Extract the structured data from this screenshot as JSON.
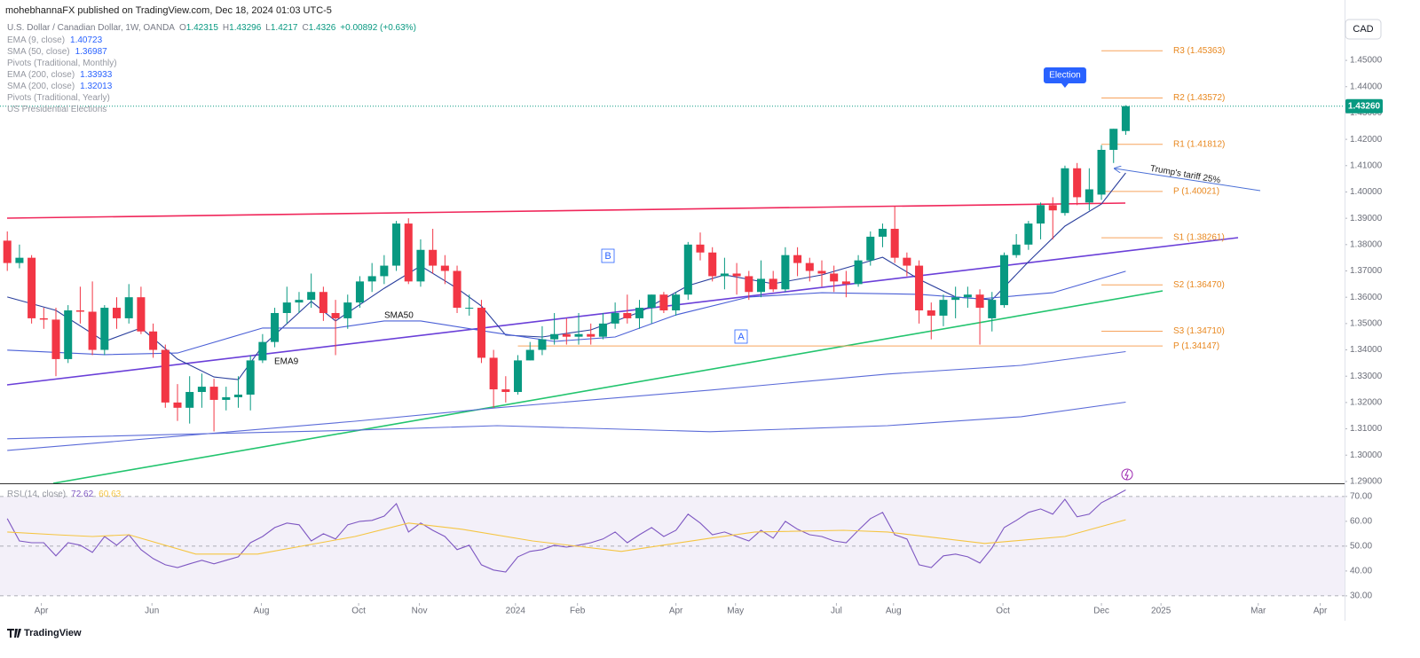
{
  "header": "mohebhannaFX published on TradingView.com, Dec 18, 2024 01:03 UTC-5",
  "currency_button": "CAD",
  "footer": "TradingView",
  "chart_data": [
    {
      "type": "candlestick",
      "title": "U.S. Dollar / Canadian Dollar, 1W, OANDA",
      "ohlc_prefixes": [
        "O",
        "H",
        "L",
        "C"
      ],
      "change_label": "+0.00892 (+0.63%)",
      "up_color": "#089981",
      "down_color": "#f23645",
      "open": [
        1.3815,
        1.373,
        1.375,
        1.352,
        1.3515,
        1.3365,
        1.355,
        1.3545,
        1.34,
        1.356,
        1.352,
        1.36,
        1.347,
        1.34,
        1.32,
        1.318,
        1.324,
        1.326,
        1.321,
        1.322,
        1.323,
        1.336,
        1.343,
        1.354,
        1.358,
        1.359,
        1.362,
        1.354,
        1.352,
        1.358,
        1.366,
        1.368,
        1.372,
        1.388,
        1.366,
        1.378,
        1.372,
        1.37,
        1.356,
        1.356,
        1.337,
        1.325,
        1.324,
        1.336,
        1.34,
        1.344,
        1.346,
        1.345,
        1.346,
        1.345,
        1.35,
        1.354,
        1.352,
        1.356,
        1.361,
        1.355,
        1.361,
        1.38,
        1.377,
        1.368,
        1.369,
        1.368,
        1.362,
        1.367,
        1.363,
        1.376,
        1.373,
        1.37,
        1.369,
        1.366,
        1.365,
        1.374,
        1.383,
        1.386,
        1.375,
        1.372,
        1.355,
        1.353,
        1.359,
        1.36,
        1.361,
        1.352,
        1.357,
        1.376,
        1.38,
        1.388,
        1.395,
        1.392,
        1.409,
        1.396,
        1.399,
        1.416,
        1.42315
      ],
      "high": [
        1.385,
        1.38,
        1.376,
        1.356,
        1.356,
        1.357,
        1.364,
        1.366,
        1.357,
        1.36,
        1.365,
        1.364,
        1.35,
        1.342,
        1.327,
        1.33,
        1.331,
        1.329,
        1.326,
        1.33,
        1.338,
        1.346,
        1.356,
        1.364,
        1.362,
        1.369,
        1.364,
        1.359,
        1.361,
        1.368,
        1.373,
        1.376,
        1.389,
        1.39,
        1.382,
        1.386,
        1.376,
        1.372,
        1.361,
        1.359,
        1.34,
        1.33,
        1.338,
        1.343,
        1.349,
        1.354,
        1.352,
        1.354,
        1.35,
        1.354,
        1.358,
        1.361,
        1.359,
        1.361,
        1.362,
        1.362,
        1.381,
        1.3846,
        1.379,
        1.375,
        1.373,
        1.37,
        1.374,
        1.37,
        1.379,
        1.379,
        1.375,
        1.374,
        1.372,
        1.37,
        1.376,
        1.385,
        1.388,
        1.3946,
        1.377,
        1.374,
        1.358,
        1.361,
        1.364,
        1.364,
        1.363,
        1.362,
        1.377,
        1.384,
        1.389,
        1.396,
        1.398,
        1.41,
        1.411,
        1.409,
        1.4178,
        1.424,
        1.43296
      ],
      "low": [
        1.37,
        1.371,
        1.35,
        1.348,
        1.33,
        1.335,
        1.35,
        1.338,
        1.338,
        1.348,
        1.35,
        1.346,
        1.337,
        1.318,
        1.313,
        1.312,
        1.318,
        1.309,
        1.317,
        1.318,
        1.317,
        1.335,
        1.341,
        1.35,
        1.354,
        1.356,
        1.351,
        1.338,
        1.348,
        1.356,
        1.362,
        1.365,
        1.37,
        1.365,
        1.364,
        1.369,
        1.365,
        1.354,
        1.353,
        1.335,
        1.318,
        1.32,
        1.323,
        1.336,
        1.338,
        1.342,
        1.342,
        1.342,
        1.342,
        1.344,
        1.348,
        1.35,
        1.348,
        1.35,
        1.354,
        1.353,
        1.359,
        1.374,
        1.366,
        1.363,
        1.361,
        1.359,
        1.36,
        1.362,
        1.362,
        1.368,
        1.366,
        1.364,
        1.362,
        1.36,
        1.364,
        1.372,
        1.379,
        1.373,
        1.368,
        1.35,
        1.344,
        1.349,
        1.352,
        1.356,
        1.342,
        1.347,
        1.356,
        1.375,
        1.378,
        1.382,
        1.382,
        1.391,
        1.395,
        1.393,
        1.397,
        1.411,
        1.4217
      ],
      "close": [
        1.373,
        1.375,
        1.352,
        1.3515,
        1.3365,
        1.355,
        1.3545,
        1.34,
        1.356,
        1.352,
        1.36,
        1.347,
        1.34,
        1.32,
        1.318,
        1.324,
        1.326,
        1.321,
        1.322,
        1.323,
        1.336,
        1.343,
        1.354,
        1.358,
        1.359,
        1.362,
        1.354,
        1.352,
        1.358,
        1.366,
        1.368,
        1.372,
        1.388,
        1.366,
        1.378,
        1.372,
        1.37,
        1.356,
        1.356,
        1.337,
        1.325,
        1.324,
        1.336,
        1.34,
        1.344,
        1.346,
        1.345,
        1.346,
        1.345,
        1.35,
        1.354,
        1.352,
        1.356,
        1.361,
        1.355,
        1.361,
        1.38,
        1.377,
        1.368,
        1.369,
        1.368,
        1.362,
        1.367,
        1.363,
        1.376,
        1.373,
        1.37,
        1.369,
        1.366,
        1.365,
        1.374,
        1.383,
        1.386,
        1.375,
        1.372,
        1.355,
        1.353,
        1.359,
        1.36,
        1.361,
        1.356,
        1.359,
        1.376,
        1.38,
        1.388,
        1.395,
        1.393,
        1.409,
        1.398,
        1.401,
        1.416,
        1.424,
        1.4326
      ],
      "close_label": "1.43260",
      "series": [
        {
          "name": "EMA (9, close)",
          "color": "#2a3f9d",
          "x": [
            0,
            4,
            8,
            11,
            14,
            17,
            19,
            21,
            25,
            27,
            31,
            34,
            37,
            39,
            41,
            44,
            48,
            52,
            56,
            59,
            63,
            67,
            72,
            75,
            78,
            81,
            84,
            87,
            90,
            92
          ],
          "values": [
            1.3601,
            1.355,
            1.3432,
            1.3483,
            1.3365,
            1.3297,
            1.3287,
            1.3415,
            1.3584,
            1.351,
            1.3634,
            1.3719,
            1.3634,
            1.3567,
            1.3456,
            1.3449,
            1.3476,
            1.3543,
            1.3644,
            1.3685,
            1.3651,
            1.3685,
            1.3752,
            1.3668,
            1.3601,
            1.359,
            1.3735,
            1.387,
            1.3954,
            1.40723
          ]
        },
        {
          "name": "SMA (50, close)",
          "color": "#4a5fd6",
          "x": [
            0,
            8,
            14,
            21,
            27,
            31,
            34,
            40,
            45,
            50,
            55,
            61,
            67,
            75,
            80,
            86,
            92
          ],
          "values": [
            1.3399,
            1.3382,
            1.3388,
            1.3483,
            1.3483,
            1.351,
            1.351,
            1.3466,
            1.3432,
            1.3449,
            1.3533,
            1.3601,
            1.3617,
            1.3611,
            1.3594,
            1.3617,
            1.36987
          ]
        },
        {
          "name": "EMA (200, close)",
          "color": "#5b6bd8",
          "x": [
            0,
            14,
            28.6,
            40.3,
            57.8,
            72.4,
            83.4,
            92
          ],
          "values": [
            1.3018,
            1.3072,
            1.3129,
            1.318,
            1.3247,
            1.3308,
            1.3341,
            1.33933
          ]
        },
        {
          "name": "SMA (200, close)",
          "color": "#5b6bd8",
          "x": [
            0,
            14,
            28.6,
            40.3,
            57.8,
            72.4,
            83.4,
            92
          ],
          "values": [
            1.3062,
            1.3079,
            1.3095,
            1.3112,
            1.3089,
            1.3112,
            1.3146,
            1.32013
          ]
        }
      ],
      "pivots_monthly": {
        "name": "Pivots (Traditional, Monthly)",
        "levels": [
          {
            "label": "R3 (1.45363)",
            "value": 1.45363
          },
          {
            "label": "R2 (1.43572)",
            "value": 1.43572
          },
          {
            "label": "R1 (1.41812)",
            "value": 1.41812
          },
          {
            "label": "P (1.40021)",
            "value": 1.40021
          },
          {
            "label": "S1 (1.38261)",
            "value": 1.38261
          },
          {
            "label": "S2 (1.36470)",
            "value": 1.3647
          },
          {
            "label": "S3 (1.34710)",
            "value": 1.3471
          }
        ]
      },
      "pivots_yearly": {
        "name": "Pivots (Traditional, Yearly)",
        "levels": [
          {
            "label": "P (1.34147)",
            "value": 1.34147
          }
        ]
      },
      "events": {
        "name": "US Presidential Elections",
        "items": [
          {
            "label": "Election",
            "x": 87
          }
        ]
      },
      "annotations": [
        "SMA50",
        "EMA9",
        "B",
        "A",
        "Trump's tariff 25%"
      ],
      "ylim": [
        1.2893,
        1.4662
      ],
      "yticks": [
        {
          "value": 1.29,
          "label": "1.29000"
        },
        {
          "value": 1.3,
          "label": "1.30000"
        },
        {
          "value": 1.31,
          "label": "1.31000"
        },
        {
          "value": 1.32,
          "label": "1.32000"
        },
        {
          "value": 1.33,
          "label": "1.33000"
        },
        {
          "value": 1.34,
          "label": "1.34000"
        },
        {
          "value": 1.35,
          "label": "1.35000"
        },
        {
          "value": 1.36,
          "label": "1.36000"
        },
        {
          "value": 1.37,
          "label": "1.37000"
        },
        {
          "value": 1.38,
          "label": "1.38000"
        },
        {
          "value": 1.39,
          "label": "1.39000"
        },
        {
          "value": 1.4,
          "label": "1.40000"
        },
        {
          "value": 1.41,
          "label": "1.41000"
        },
        {
          "value": 1.42,
          "label": "1.42000"
        },
        {
          "value": 1.43,
          "label": "1.43000"
        },
        {
          "value": 1.44,
          "label": "1.44000"
        },
        {
          "value": 1.45,
          "label": "1.45000"
        }
      ],
      "xlim": [
        -0.6,
        110
      ],
      "xticks": [
        {
          "value": 2.8,
          "label": "Apr"
        },
        {
          "value": 11.9,
          "label": "Jun"
        },
        {
          "value": 20.9,
          "label": "Aug"
        },
        {
          "value": 28.9,
          "label": "Oct"
        },
        {
          "value": 33.9,
          "label": "Nov"
        },
        {
          "value": 41.8,
          "label": "2024"
        },
        {
          "value": 46.9,
          "label": "Feb"
        },
        {
          "value": 55,
          "label": "Apr"
        },
        {
          "value": 59.9,
          "label": "May"
        },
        {
          "value": 68.2,
          "label": "Jul"
        },
        {
          "value": 72.9,
          "label": "Aug"
        },
        {
          "value": 81.9,
          "label": "Oct"
        },
        {
          "value": 90,
          "label": "Dec"
        },
        {
          "value": 94.9,
          "label": "2025"
        },
        {
          "value": 102.9,
          "label": "Mar"
        },
        {
          "value": 108,
          "label": "Apr"
        }
      ]
    },
    {
      "type": "line",
      "title": "RSI (14, close)",
      "series": [
        {
          "name": "RSI",
          "color": "#7e57c2",
          "values": [
            61.1,
            52.1,
            51.4,
            51.4,
            46.1,
            51.4,
            50.4,
            47.5,
            53.9,
            50.4,
            54.6,
            48.6,
            45.0,
            42.5,
            41.4,
            42.9,
            44.3,
            42.9,
            44.3,
            45.7,
            51.4,
            53.9,
            57.5,
            59.3,
            58.6,
            52.1,
            55.0,
            52.9,
            58.6,
            60.0,
            60.4,
            62.1,
            67.1,
            55.7,
            59.3,
            56.4,
            53.9,
            48.6,
            50.4,
            42.5,
            40.4,
            39.6,
            45.7,
            47.9,
            48.6,
            50.4,
            49.6,
            50.4,
            51.4,
            52.9,
            55.7,
            51.4,
            54.6,
            57.5,
            53.9,
            56.4,
            62.9,
            59.3,
            54.6,
            55.7,
            53.9,
            52.1,
            56.4,
            53.2,
            60.0,
            56.8,
            54.6,
            53.9,
            52.1,
            51.4,
            56.4,
            61.1,
            63.6,
            54.6,
            52.9,
            42.5,
            41.4,
            46.1,
            46.8,
            45.7,
            43.2,
            49.3,
            57.5,
            60.4,
            63.6,
            65.0,
            62.9,
            68.9,
            61.8,
            62.9,
            67.5,
            70.0,
            72.62
          ]
        },
        {
          "name": "RSI-based MA",
          "color": "#f5c542",
          "x": [
            0,
            4,
            7,
            10,
            15.5,
            20.6,
            28.6,
            33,
            37.4,
            43.2,
            50.5,
            57.8,
            61.5,
            68.8,
            72.4,
            80.4,
            87,
            92
          ],
          "values": [
            55.7,
            54.6,
            53.9,
            54.6,
            46.8,
            46.8,
            53.9,
            59.3,
            56.8,
            52.1,
            47.9,
            53.2,
            55.7,
            56.4,
            55.7,
            51.1,
            53.9,
            60.63
          ]
        }
      ],
      "levels": [
        30,
        50,
        70
      ],
      "ylim": [
        27.1,
        74.6
      ],
      "yticks": [
        {
          "value": 30,
          "label": "30.00"
        },
        {
          "value": 40,
          "label": "40.00"
        },
        {
          "value": 50,
          "label": "50.00"
        },
        {
          "value": 60,
          "label": "60.00"
        },
        {
          "value": 70,
          "label": "70.00"
        }
      ]
    }
  ]
}
